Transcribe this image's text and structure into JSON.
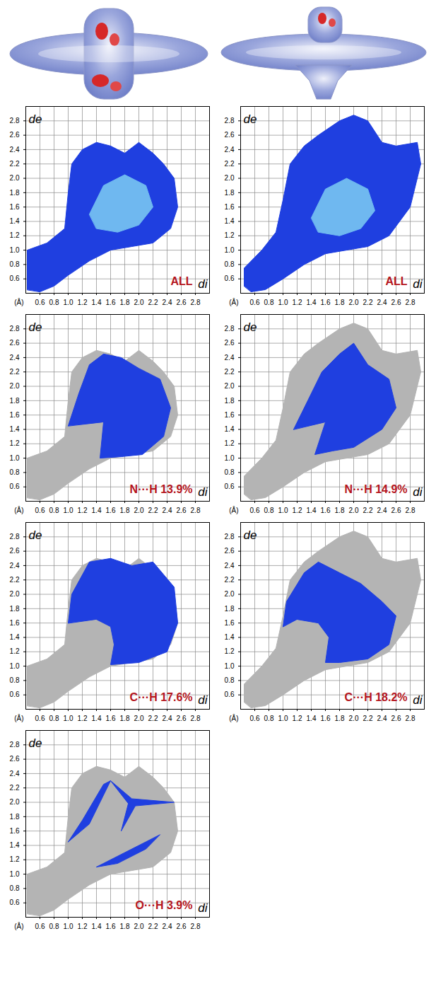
{
  "chart_data": [
    {
      "type": "area",
      "annotation": "ALL",
      "xlabel": "di",
      "ylabel": "de",
      "axis_unit": "(Å)",
      "xlim": [
        0.4,
        3.0
      ],
      "ylim": [
        0.4,
        3.0
      ],
      "xticks": [
        0.6,
        0.8,
        {
          "value": 1,
          "label": "1.0"
        },
        1.2,
        1.4,
        1.6,
        1.8,
        {
          "value": 2,
          "label": "2.0"
        },
        2.2,
        2.4,
        2.6,
        2.8
      ],
      "yticks": [
        0.6,
        0.8,
        {
          "value": 1,
          "label": "1.0"
        },
        1.2,
        1.4,
        1.6,
        1.8,
        {
          "value": 2,
          "label": "2.0"
        },
        2.2,
        2.4,
        2.6,
        2.8
      ],
      "grid": true,
      "series": [
        {
          "color": "#1f3fe0",
          "x": [
            0.42,
            0.42,
            0.7,
            0.95,
            1.0,
            1.05,
            1.2,
            1.4,
            1.6,
            1.8,
            2.0,
            2.2,
            2.35,
            2.5,
            2.55,
            2.45,
            2.2,
            1.9,
            1.6,
            1.3,
            1.0,
            0.8,
            0.6
          ],
          "y": [
            0.45,
            1.0,
            1.1,
            1.3,
            1.8,
            2.2,
            2.4,
            2.5,
            2.45,
            2.35,
            2.5,
            2.35,
            2.2,
            2.0,
            1.6,
            1.3,
            1.1,
            1.05,
            1.0,
            0.85,
            0.65,
            0.5,
            0.42
          ]
        },
        {
          "color": "#6fb8f0",
          "x": [
            1.3,
            1.5,
            1.8,
            2.1,
            2.2,
            2.0,
            1.7,
            1.4
          ],
          "y": [
            1.5,
            1.9,
            2.05,
            1.9,
            1.6,
            1.35,
            1.25,
            1.3
          ]
        }
      ]
    },
    {
      "type": "area",
      "annotation": "ALL",
      "xlabel": "di",
      "ylabel": "de",
      "axis_unit": "(Å)",
      "xlim": [
        0.4,
        3.0
      ],
      "ylim": [
        0.4,
        3.0
      ],
      "xticks": [
        0.6,
        0.8,
        {
          "value": 1,
          "label": "1.0"
        },
        1.2,
        1.4,
        1.6,
        1.8,
        {
          "value": 2,
          "label": "2.0"
        },
        2.2,
        2.4,
        2.6,
        2.8
      ],
      "yticks": [
        0.6,
        0.8,
        {
          "value": 1,
          "label": "1.0"
        },
        1.2,
        1.4,
        1.6,
        1.8,
        {
          "value": 2,
          "label": "2.0"
        },
        2.2,
        2.4,
        2.6,
        2.8
      ],
      "grid": true,
      "series": [
        {
          "color": "#1f3fe0",
          "x": [
            0.45,
            0.45,
            0.7,
            0.9,
            1.0,
            1.1,
            1.3,
            1.5,
            1.8,
            2.0,
            2.2,
            2.4,
            2.6,
            2.9,
            2.95,
            2.8,
            2.5,
            2.2,
            1.9,
            1.6,
            1.3,
            1.0,
            0.75,
            0.55
          ],
          "y": [
            0.5,
            0.75,
            1.0,
            1.25,
            1.7,
            2.2,
            2.45,
            2.6,
            2.8,
            2.88,
            2.8,
            2.5,
            2.45,
            2.5,
            2.2,
            1.6,
            1.2,
            1.05,
            1.0,
            0.95,
            0.8,
            0.6,
            0.45,
            0.42
          ]
        },
        {
          "color": "#6fb8f0",
          "x": [
            1.4,
            1.6,
            1.9,
            2.2,
            2.3,
            2.1,
            1.8,
            1.5
          ],
          "y": [
            1.45,
            1.85,
            2.0,
            1.85,
            1.55,
            1.3,
            1.2,
            1.25
          ]
        }
      ]
    },
    {
      "type": "area",
      "annotation": "N···H 13.9%",
      "xlabel": "di",
      "ylabel": "de",
      "axis_unit": "(Å)",
      "xlim": [
        0.4,
        3.0
      ],
      "ylim": [
        0.4,
        3.0
      ],
      "xticks": [
        0.6,
        0.8,
        {
          "value": 1,
          "label": "1.0"
        },
        1.2,
        1.4,
        1.6,
        1.8,
        {
          "value": 2,
          "label": "2.0"
        },
        2.2,
        2.4,
        2.6,
        2.8
      ],
      "yticks": [
        0.6,
        0.8,
        {
          "value": 1,
          "label": "1.0"
        },
        1.2,
        1.4,
        1.6,
        1.8,
        {
          "value": 2,
          "label": "2.0"
        },
        2.2,
        2.4,
        2.6,
        2.8
      ],
      "grid": true,
      "series": [
        {
          "color": "#b4b4b4",
          "x": [
            0.42,
            0.42,
            0.7,
            0.95,
            1.0,
            1.05,
            1.2,
            1.4,
            1.6,
            1.8,
            2.0,
            2.2,
            2.35,
            2.5,
            2.55,
            2.45,
            2.2,
            1.9,
            1.6,
            1.3,
            1.0,
            0.8,
            0.6
          ],
          "y": [
            0.45,
            1.0,
            1.1,
            1.3,
            1.8,
            2.2,
            2.4,
            2.5,
            2.45,
            2.35,
            2.5,
            2.35,
            2.2,
            2.0,
            1.6,
            1.3,
            1.1,
            1.05,
            1.0,
            0.85,
            0.65,
            0.5,
            0.42
          ]
        },
        {
          "color": "#1f3fe0",
          "x": [
            1.0,
            1.15,
            1.3,
            1.5,
            1.75,
            2.0,
            2.3,
            2.45,
            2.35,
            2.05,
            1.75,
            1.45,
            1.5
          ],
          "y": [
            1.45,
            1.9,
            2.3,
            2.45,
            2.4,
            2.25,
            2.1,
            1.7,
            1.3,
            1.05,
            1.02,
            1.0,
            1.5
          ]
        }
      ]
    },
    {
      "type": "area",
      "annotation": "N···H 14.9%",
      "xlabel": "di",
      "ylabel": "de",
      "axis_unit": "(Å)",
      "xlim": [
        0.4,
        3.0
      ],
      "ylim": [
        0.4,
        3.0
      ],
      "xticks": [
        0.6,
        0.8,
        {
          "value": 1,
          "label": "1.0"
        },
        1.2,
        1.4,
        1.6,
        1.8,
        {
          "value": 2,
          "label": "2.0"
        },
        2.2,
        2.4,
        2.6,
        2.8
      ],
      "yticks": [
        0.6,
        0.8,
        {
          "value": 1,
          "label": "1.0"
        },
        1.2,
        1.4,
        1.6,
        1.8,
        {
          "value": 2,
          "label": "2.0"
        },
        2.2,
        2.4,
        2.6,
        2.8
      ],
      "grid": true,
      "series": [
        {
          "color": "#b4b4b4",
          "x": [
            0.45,
            0.45,
            0.7,
            0.9,
            1.0,
            1.1,
            1.3,
            1.5,
            1.8,
            2.0,
            2.2,
            2.4,
            2.6,
            2.9,
            2.95,
            2.8,
            2.5,
            2.2,
            1.9,
            1.6,
            1.3,
            1.0,
            0.75,
            0.55
          ],
          "y": [
            0.5,
            0.75,
            1.0,
            1.25,
            1.7,
            2.2,
            2.45,
            2.6,
            2.8,
            2.88,
            2.8,
            2.5,
            2.45,
            2.5,
            2.2,
            1.6,
            1.2,
            1.05,
            1.0,
            0.95,
            0.8,
            0.6,
            0.45,
            0.42
          ]
        },
        {
          "color": "#1f3fe0",
          "x": [
            1.15,
            1.35,
            1.55,
            1.8,
            2.0,
            2.2,
            2.5,
            2.6,
            2.4,
            2.0,
            1.7,
            1.45,
            1.6
          ],
          "y": [
            1.4,
            1.8,
            2.2,
            2.45,
            2.6,
            2.3,
            2.1,
            1.7,
            1.4,
            1.15,
            1.1,
            1.05,
            1.5
          ]
        }
      ]
    },
    {
      "type": "area",
      "annotation": "C···H 17.6%",
      "xlabel": "di",
      "ylabel": "de",
      "axis_unit": "(Å)",
      "xlim": [
        0.4,
        3.0
      ],
      "ylim": [
        0.4,
        3.0
      ],
      "xticks": [
        0.6,
        0.8,
        {
          "value": 1,
          "label": "1.0"
        },
        1.2,
        1.4,
        1.6,
        1.8,
        {
          "value": 2,
          "label": "2.0"
        },
        2.2,
        2.4,
        2.6,
        2.8
      ],
      "yticks": [
        0.6,
        0.8,
        {
          "value": 1,
          "label": "1.0"
        },
        1.2,
        1.4,
        1.6,
        1.8,
        {
          "value": 2,
          "label": "2.0"
        },
        2.2,
        2.4,
        2.6,
        2.8
      ],
      "grid": true,
      "series": [
        {
          "color": "#b4b4b4",
          "x": [
            0.42,
            0.42,
            0.7,
            0.95,
            1.0,
            1.05,
            1.2,
            1.4,
            1.6,
            1.8,
            2.0,
            2.2,
            2.35,
            2.5,
            2.55,
            2.45,
            2.2,
            1.9,
            1.6,
            1.3,
            1.0,
            0.8,
            0.6
          ],
          "y": [
            0.45,
            1.0,
            1.1,
            1.3,
            1.8,
            2.2,
            2.4,
            2.5,
            2.45,
            2.35,
            2.5,
            2.35,
            2.2,
            2.0,
            1.6,
            1.3,
            1.1,
            1.05,
            1.0,
            0.85,
            0.65,
            0.5,
            0.42
          ]
        },
        {
          "color": "#1f3fe0",
          "x": [
            1.0,
            1.05,
            1.3,
            1.6,
            1.9,
            2.2,
            2.5,
            2.55,
            2.4,
            2.0,
            1.6,
            1.65,
            1.6,
            1.4
          ],
          "y": [
            1.6,
            2.0,
            2.45,
            2.5,
            2.4,
            2.45,
            2.1,
            1.6,
            1.2,
            1.05,
            1.02,
            1.3,
            1.55,
            1.65
          ]
        }
      ]
    },
    {
      "type": "area",
      "annotation": "C···H 18.2%",
      "xlabel": "di",
      "ylabel": "de",
      "axis_unit": "(Å)",
      "xlim": [
        0.4,
        3.0
      ],
      "ylim": [
        0.4,
        3.0
      ],
      "xticks": [
        0.6,
        0.8,
        {
          "value": 1,
          "label": "1.0"
        },
        1.2,
        1.4,
        1.6,
        1.8,
        {
          "value": 2,
          "label": "2.0"
        },
        2.2,
        2.4,
        2.6,
        2.8
      ],
      "yticks": [
        0.6,
        0.8,
        {
          "value": 1,
          "label": "1.0"
        },
        1.2,
        1.4,
        1.6,
        1.8,
        {
          "value": 2,
          "label": "2.0"
        },
        2.2,
        2.4,
        2.6,
        2.8
      ],
      "grid": true,
      "series": [
        {
          "color": "#b4b4b4",
          "x": [
            0.45,
            0.45,
            0.7,
            0.9,
            1.0,
            1.1,
            1.3,
            1.5,
            1.8,
            2.0,
            2.2,
            2.4,
            2.6,
            2.9,
            2.95,
            2.8,
            2.5,
            2.2,
            1.9,
            1.6,
            1.3,
            1.0,
            0.75,
            0.55
          ],
          "y": [
            0.5,
            0.75,
            1.0,
            1.25,
            1.7,
            2.2,
            2.45,
            2.6,
            2.8,
            2.88,
            2.8,
            2.5,
            2.45,
            2.5,
            2.2,
            1.6,
            1.2,
            1.05,
            1.0,
            0.95,
            0.8,
            0.6,
            0.45,
            0.42
          ]
        },
        {
          "color": "#1f3fe0",
          "x": [
            1.0,
            1.05,
            1.3,
            1.5,
            1.8,
            2.1,
            2.4,
            2.6,
            2.5,
            2.2,
            1.8,
            1.6,
            1.65,
            1.5,
            1.2
          ],
          "y": [
            1.55,
            1.9,
            2.3,
            2.45,
            2.3,
            2.15,
            1.9,
            1.7,
            1.3,
            1.1,
            1.05,
            1.05,
            1.4,
            1.6,
            1.65
          ]
        }
      ]
    },
    {
      "type": "area",
      "annotation": "O···H 3.9%",
      "xlabel": "di",
      "ylabel": "de",
      "axis_unit": "(Å)",
      "xlim": [
        0.4,
        3.0
      ],
      "ylim": [
        0.4,
        3.0
      ],
      "xticks": [
        0.6,
        0.8,
        {
          "value": 1,
          "label": "1.0"
        },
        1.2,
        1.4,
        1.6,
        1.8,
        {
          "value": 2,
          "label": "2.0"
        },
        2.2,
        2.4,
        2.6,
        2.8
      ],
      "yticks": [
        0.6,
        0.8,
        {
          "value": 1,
          "label": "1.0"
        },
        1.2,
        1.4,
        1.6,
        1.8,
        {
          "value": 2,
          "label": "2.0"
        },
        2.2,
        2.4,
        2.6,
        2.8
      ],
      "grid": true,
      "series": [
        {
          "color": "#b4b4b4",
          "x": [
            0.42,
            0.42,
            0.7,
            0.95,
            1.0,
            1.05,
            1.2,
            1.4,
            1.6,
            1.8,
            2.0,
            2.2,
            2.35,
            2.5,
            2.55,
            2.45,
            2.2,
            1.9,
            1.6,
            1.3,
            1.0,
            0.8,
            0.6
          ],
          "y": [
            0.45,
            1.0,
            1.1,
            1.3,
            1.8,
            2.2,
            2.4,
            2.5,
            2.45,
            2.35,
            2.5,
            2.35,
            2.2,
            2.0,
            1.6,
            1.3,
            1.1,
            1.05,
            1.0,
            0.85,
            0.65,
            0.5,
            0.42
          ]
        },
        {
          "color": "#1f3fe0",
          "x": [
            1.0,
            1.2,
            1.5,
            1.6,
            1.45,
            1.3
          ],
          "y": [
            1.45,
            1.75,
            2.25,
            2.3,
            2.0,
            1.7
          ]
        },
        {
          "color": "#1f3fe0",
          "x": [
            1.4,
            1.7,
            2.1,
            2.3,
            2.1,
            1.7
          ],
          "y": [
            1.1,
            1.25,
            1.45,
            1.55,
            1.35,
            1.15
          ]
        },
        {
          "color": "#1f3fe0",
          "x": [
            1.6,
            1.9,
            2.5,
            1.95,
            1.75,
            1.85
          ],
          "y": [
            2.3,
            2.05,
            2.0,
            1.95,
            1.6,
            1.98
          ]
        }
      ]
    }
  ]
}
